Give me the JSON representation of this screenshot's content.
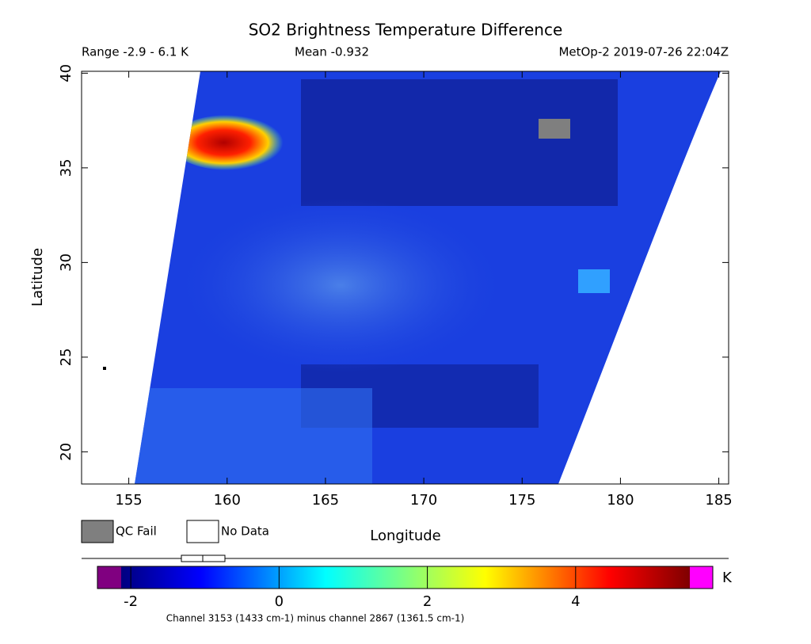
{
  "header": {
    "title": "SO2 Brightness Temperature Difference",
    "range": "Range -2.9 - 6.1 K",
    "mean": "Mean -0.932",
    "source": "MetOp-2 2019-07-26 22:04Z"
  },
  "map": {
    "xlabel": "Longitude",
    "ylabel": "Latitude",
    "xlim": [
      152.6,
      185.5
    ],
    "xticks": [
      155,
      160,
      165,
      170,
      175,
      180,
      185
    ],
    "ylim": [
      18.3,
      40.1
    ],
    "yticks": [
      20,
      25,
      30,
      35,
      40
    ]
  },
  "legend": {
    "items": [
      "QC Fail",
      "No Data"
    ]
  },
  "colorbar": {
    "lim": [
      -2.45,
      5.85
    ],
    "ticks": [
      -2,
      0,
      2,
      4
    ],
    "unit": "K",
    "caption": "Channel 3153 (1433 cm-1) minus channel 2867 (1361.5 cm-1)"
  }
}
